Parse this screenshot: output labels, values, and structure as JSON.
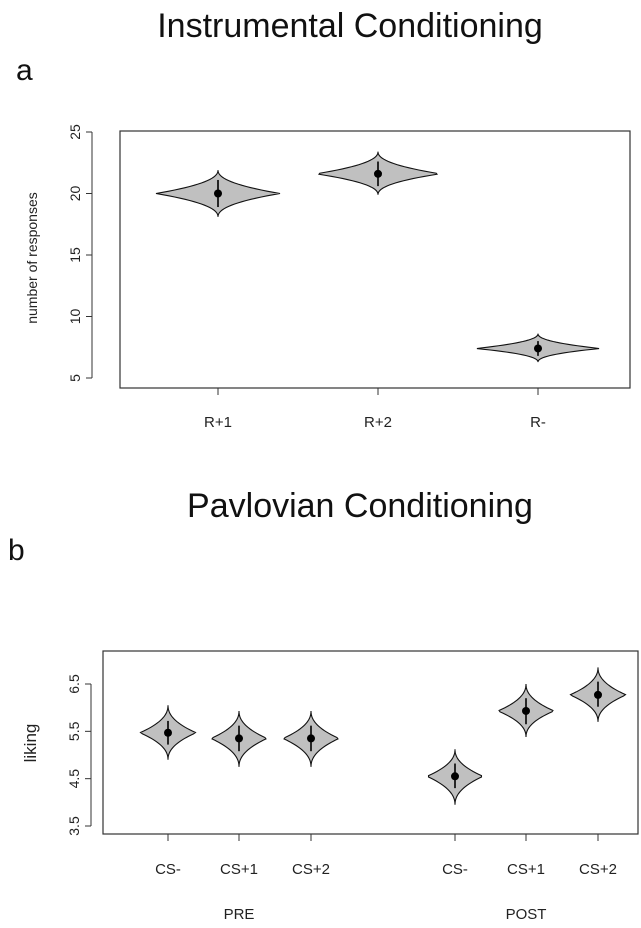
{
  "chart_data": [
    {
      "type": "violin",
      "title": "Instrumental Conditioning",
      "panel_label": "a",
      "ylabel": "number of responses",
      "ylim": [
        5,
        25
      ],
      "yticks": [
        5,
        10,
        15,
        20,
        25
      ],
      "categories": [
        "R+1",
        "R+2",
        "R-"
      ],
      "means": [
        20.0,
        21.6,
        7.4
      ],
      "err_low": [
        18.9,
        20.6,
        6.8
      ],
      "err_high": [
        21.1,
        22.6,
        8.0
      ],
      "violin_low": [
        18.1,
        19.9,
        6.3
      ],
      "violin_high": [
        21.9,
        23.4,
        8.6
      ],
      "fill": "#c0c0c0"
    },
    {
      "type": "violin",
      "title": "Pavlovian Conditioning",
      "panel_label": "b",
      "ylabel": "liking",
      "ylim": [
        3.5,
        6.5
      ],
      "yticks": [
        3.5,
        4.5,
        5.5,
        6.5
      ],
      "groups": [
        "PRE",
        "POST"
      ],
      "categories": [
        "CS-",
        "CS+1",
        "CS+2",
        "CS-",
        "CS+1",
        "CS+2"
      ],
      "category_group": [
        0,
        0,
        0,
        1,
        1,
        1
      ],
      "means": [
        5.47,
        5.35,
        5.35,
        4.55,
        5.93,
        6.27
      ],
      "err_low": [
        5.22,
        5.08,
        5.08,
        4.3,
        5.65,
        6.02
      ],
      "err_high": [
        5.72,
        5.62,
        5.62,
        4.82,
        6.2,
        6.55
      ],
      "violin_low": [
        4.9,
        4.75,
        4.75,
        3.95,
        5.38,
        5.7
      ],
      "violin_high": [
        6.05,
        5.93,
        5.93,
        5.12,
        6.5,
        6.85
      ],
      "fill": "#c0c0c0"
    }
  ]
}
